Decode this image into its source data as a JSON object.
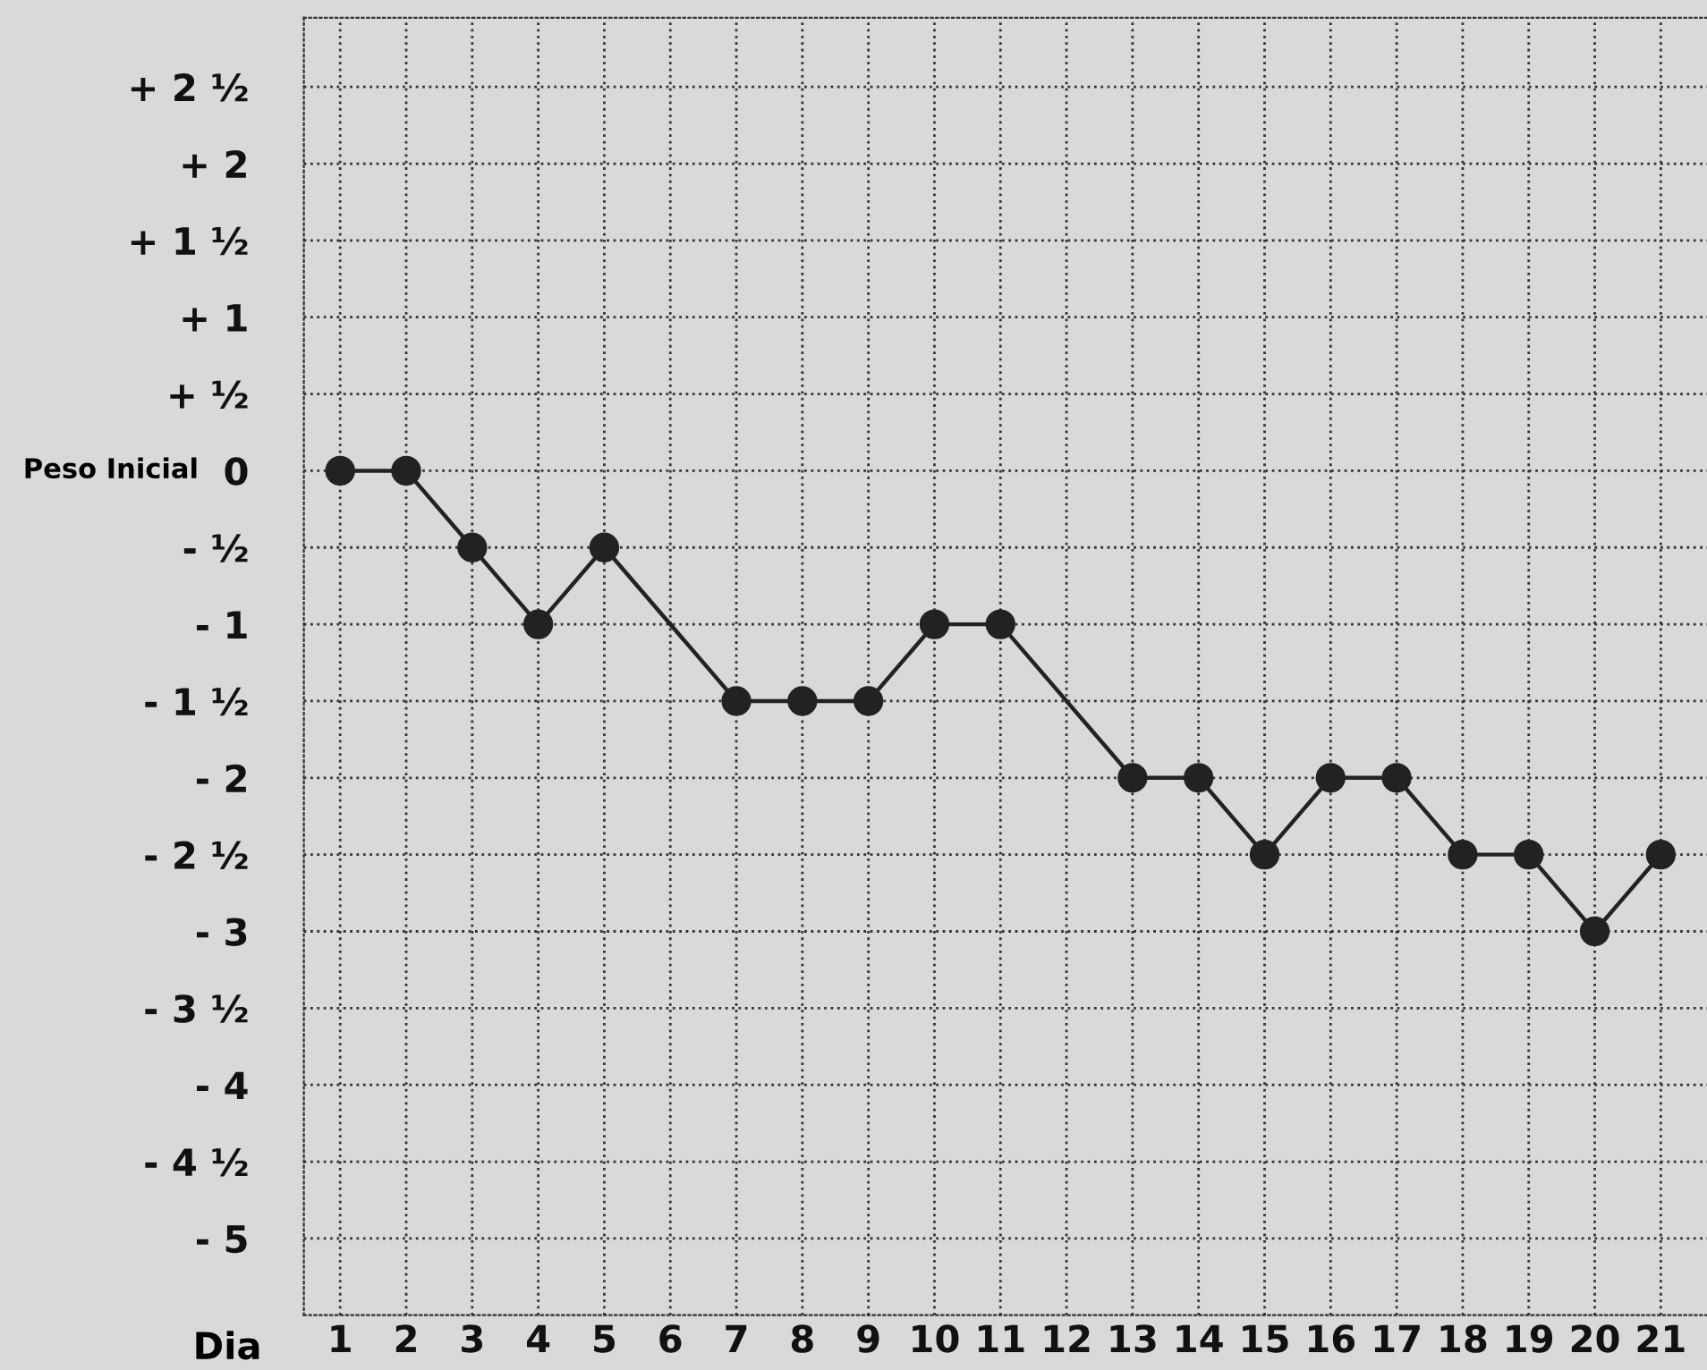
{
  "chart_data": {
    "type": "line",
    "xlabel": "Dia",
    "marker": "circle",
    "line_style": "solid",
    "grid": true,
    "legend": false,
    "x": [
      1,
      2,
      3,
      4,
      5,
      7,
      8,
      9,
      10,
      11,
      13,
      14,
      15,
      16,
      17,
      18,
      19,
      20,
      21
    ],
    "series": [
      {
        "color": "#222222",
        "values": [
          0,
          0,
          -0.5,
          -1,
          -0.5,
          -1.5,
          -1.5,
          -1.5,
          -1,
          -1,
          -2,
          -2,
          -2.5,
          -2,
          -2,
          -2.5,
          -2.5,
          -3,
          -2.5
        ]
      }
    ],
    "xlim": [
      0.45,
      21.7
    ],
    "xticks": [
      1,
      2,
      3,
      4,
      5,
      6,
      7,
      8,
      9,
      10,
      11,
      12,
      13,
      14,
      15,
      16,
      17,
      18,
      19,
      20,
      21
    ],
    "ylim": [
      -5.5,
      2.95
    ],
    "yticks": [
      {
        "value": 2.5,
        "label": "+ 2 ½"
      },
      {
        "value": 2,
        "label": "+ 2"
      },
      {
        "value": 1.5,
        "label": "+ 1 ½"
      },
      {
        "value": 1,
        "label": "+ 1"
      },
      {
        "value": 0.5,
        "label": "+ ½"
      },
      0,
      {
        "value": -0.5,
        "label": "- ½"
      },
      {
        "value": -1,
        "label": "- 1"
      },
      {
        "value": -1.5,
        "label": "- 1 ½"
      },
      {
        "value": -2,
        "label": "- 2"
      },
      {
        "value": -2.5,
        "label": "- 2 ½"
      },
      {
        "value": -3,
        "label": "- 3"
      },
      {
        "value": -3.5,
        "label": "- 3 ½"
      },
      {
        "value": -4,
        "label": "- 4"
      },
      {
        "value": -4.5,
        "label": "- 4 ½"
      },
      {
        "value": -5,
        "label": "- 5"
      }
    ],
    "annotations": [
      "Peso Inicial"
    ]
  }
}
